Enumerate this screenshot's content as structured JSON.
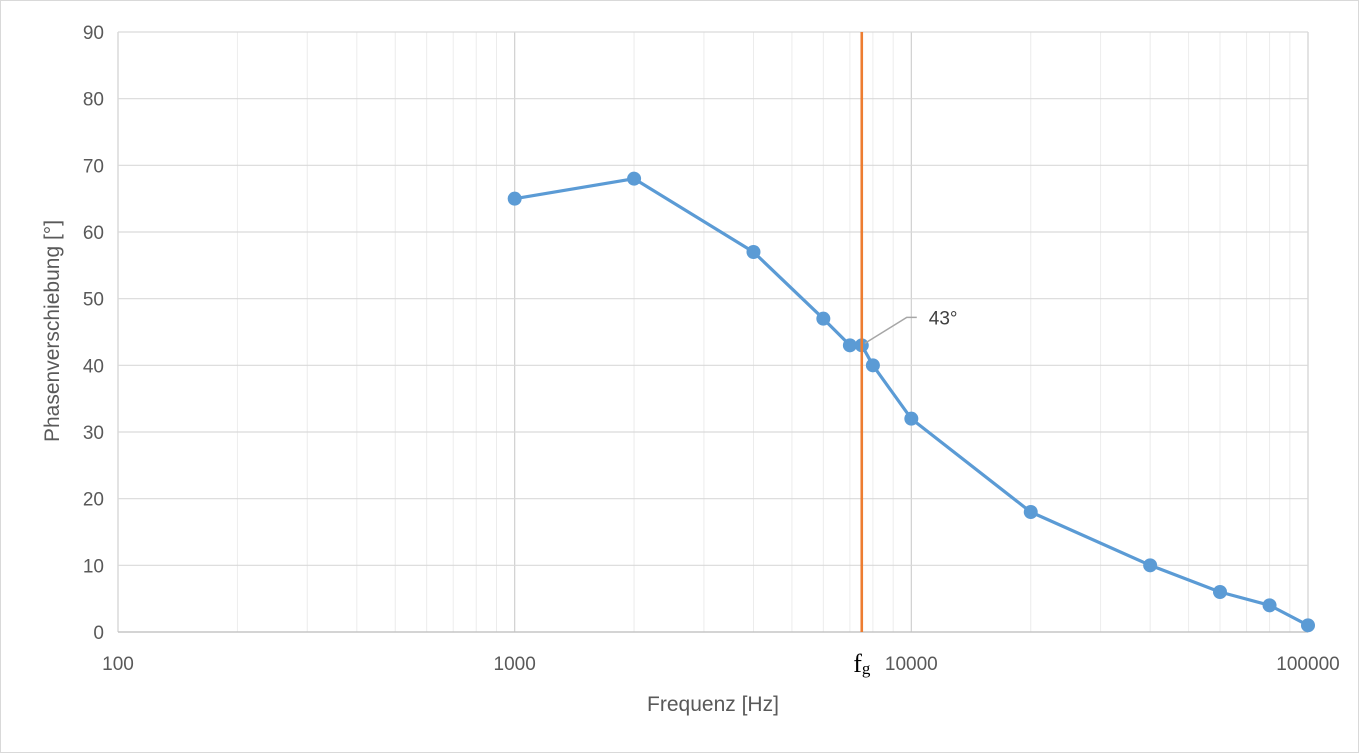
{
  "chart_data": {
    "type": "scatter",
    "xscale": "log",
    "xlim": [
      100,
      100000
    ],
    "ylim": [
      0,
      90
    ],
    "grid": true,
    "xlabel": "Frequenz [Hz]",
    "ylabel": "Phasenverschiebung [°]",
    "x_ticks": [
      "100",
      "1000",
      "10000",
      "100000"
    ],
    "y_ticks": [
      "0",
      "10",
      "20",
      "30",
      "40",
      "50",
      "60",
      "70",
      "80",
      "90"
    ],
    "series": [
      {
        "color": "#5b9bd5",
        "x": [
          1000,
          2000,
          4000,
          6000,
          7000,
          7500,
          8000,
          10000,
          20000,
          40000,
          60000,
          80000,
          100000
        ],
        "y": [
          65,
          68,
          57,
          47,
          43,
          43,
          40,
          32,
          18,
          10,
          6,
          4,
          1
        ]
      }
    ],
    "marker_line": {
      "x": 7500,
      "color": "#ed7d31",
      "label_main": "f",
      "label_sub": "g"
    },
    "annotation": {
      "text": "43°",
      "x": 7500,
      "y": 43
    }
  }
}
